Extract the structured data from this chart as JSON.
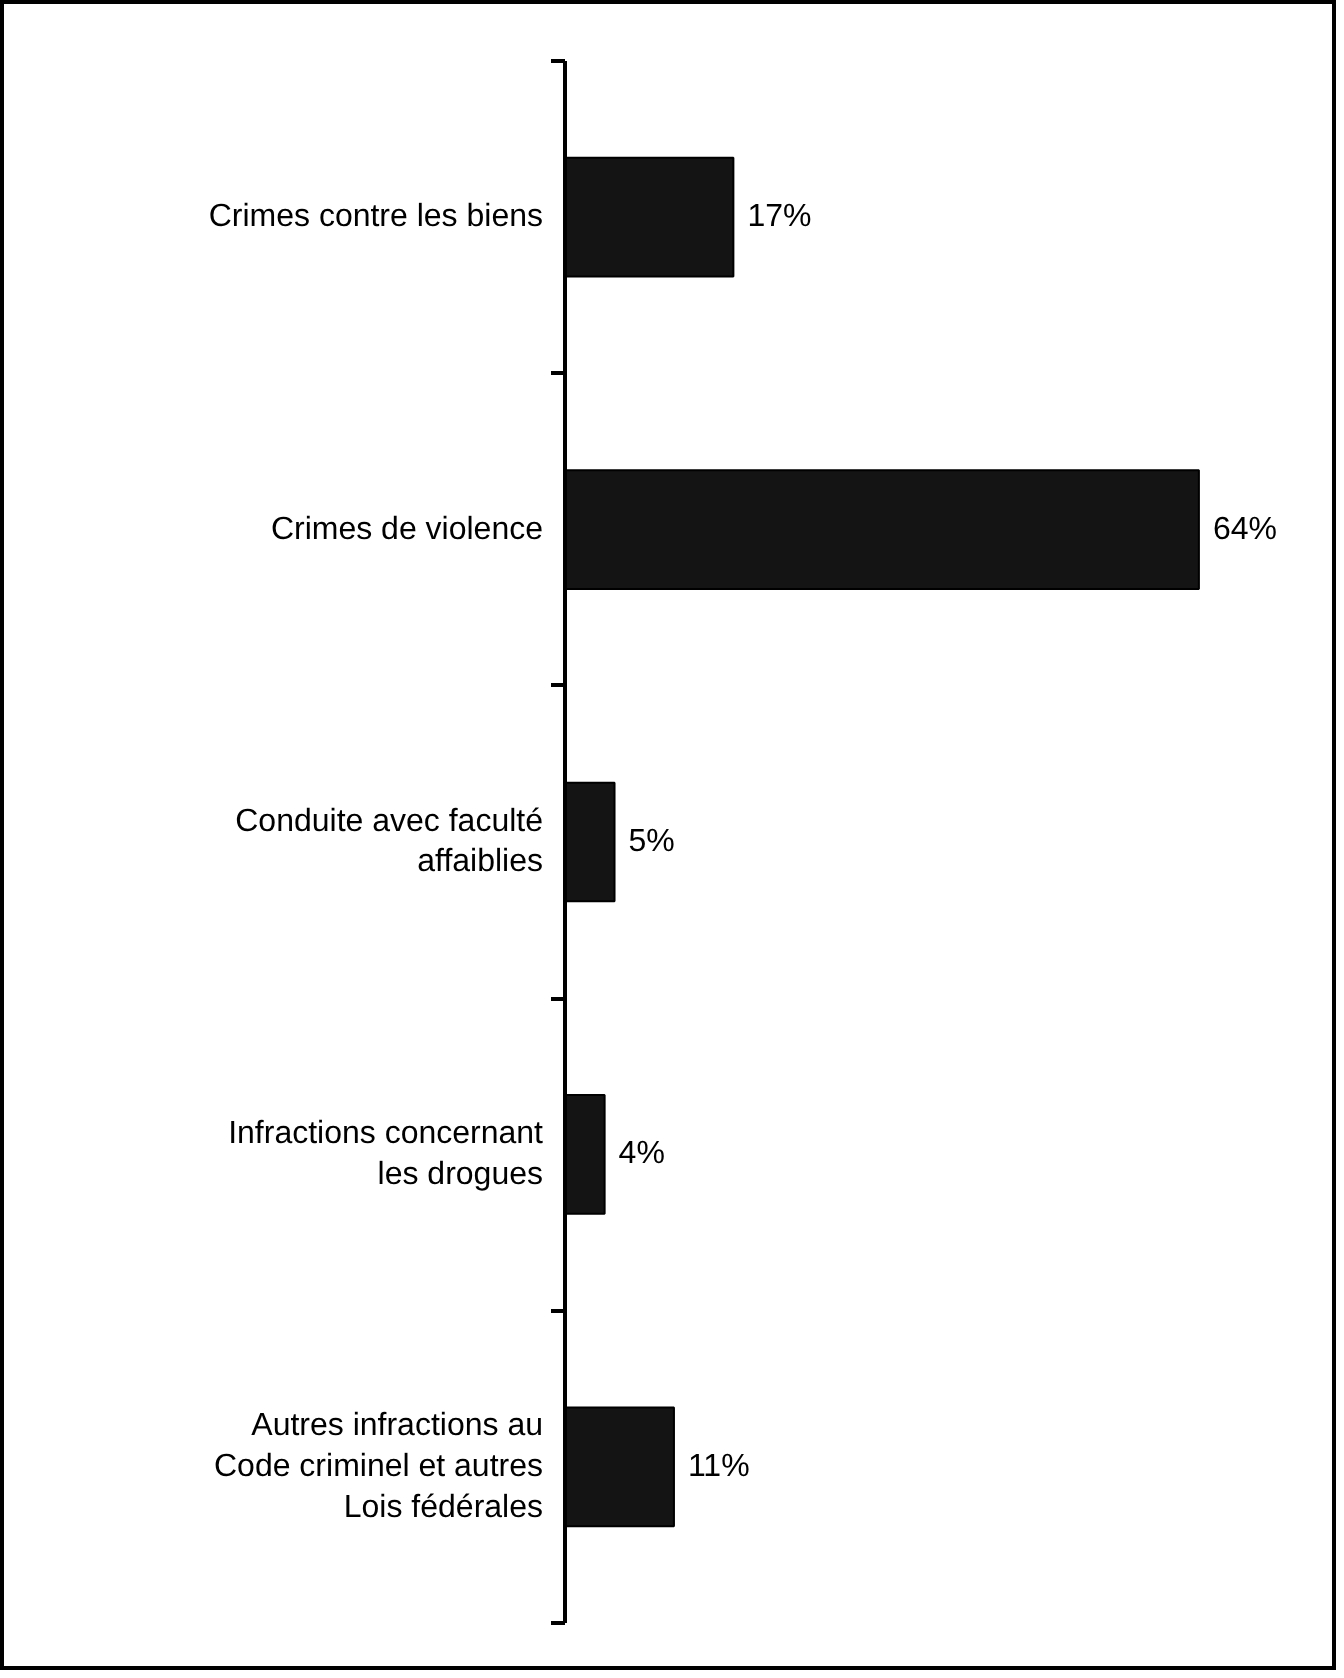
{
  "chart_data": {
    "type": "bar",
    "orientation": "horizontal",
    "data_labels": true,
    "categories": [
      "Crimes contre les biens",
      "Crimes de violence",
      "Conduite avec faculté affaiblies",
      "Infractions concernant les drogues",
      "Autres infractions au Code criminel et autres Lois fédérales"
    ],
    "values": [
      17,
      64,
      5,
      4,
      11
    ],
    "color": "#141414",
    "value_labels": [
      "17%",
      "64%",
      "5%",
      "4%",
      "11%"
    ],
    "grid": false
  }
}
